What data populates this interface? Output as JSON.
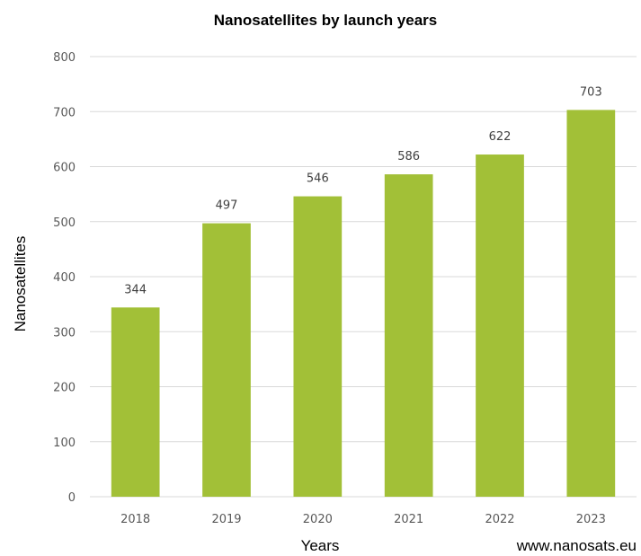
{
  "chart_data": {
    "type": "bar",
    "title": "Nanosatellites by launch years",
    "xlabel": "Years",
    "ylabel": "Nanosatellites",
    "categories": [
      "2018",
      "2019",
      "2020",
      "2021",
      "2022",
      "2023"
    ],
    "values": [
      344,
      497,
      546,
      586,
      622,
      703
    ],
    "ylim": [
      0,
      800
    ],
    "yticks": [
      0,
      100,
      200,
      300,
      400,
      500,
      600,
      700,
      800
    ],
    "grid": true,
    "data_labels": true,
    "bar_color": "#a2c037",
    "source": "www.nanosats.eu"
  }
}
